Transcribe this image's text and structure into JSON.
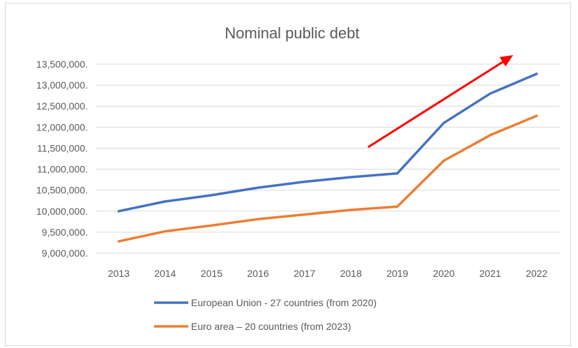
{
  "chart_data": {
    "type": "line",
    "title": "Nominal public debt",
    "xlabel": "",
    "ylabel": "",
    "categories": [
      "2013",
      "2014",
      "2015",
      "2016",
      "2017",
      "2018",
      "2019",
      "2020",
      "2021",
      "2022"
    ],
    "y_tick_values": [
      9000000,
      9500000,
      10000000,
      10500000,
      11000000,
      11500000,
      12000000,
      12500000,
      13000000,
      13500000
    ],
    "y_tick_labels": [
      "9,000,000.",
      "9,500,000.",
      "10,000,000.",
      "10,500,000.",
      "11,000,000.",
      "11,500,000.",
      "12,000,000.",
      "12,500,000.",
      "13,000,000.",
      "13,500,000."
    ],
    "ylim": [
      9000000,
      13500000
    ],
    "grid": true,
    "legend_position": "bottom",
    "series": [
      {
        "name": "European Union - 27 countries (from 2020)",
        "color": "#4472c4",
        "values": [
          10000000,
          10230000,
          10380000,
          10560000,
          10700000,
          10810000,
          10900000,
          12100000,
          12800000,
          13270000
        ]
      },
      {
        "name": "Euro area – 20 countries (from 2023)",
        "color": "#ed7d31",
        "values": [
          9280000,
          9520000,
          9660000,
          9810000,
          9920000,
          10030000,
          10110000,
          11200000,
          11810000,
          12270000
        ]
      }
    ],
    "annotations": [
      {
        "type": "arrow",
        "color": "#ff0000",
        "description": "upward trend arrow"
      }
    ]
  }
}
